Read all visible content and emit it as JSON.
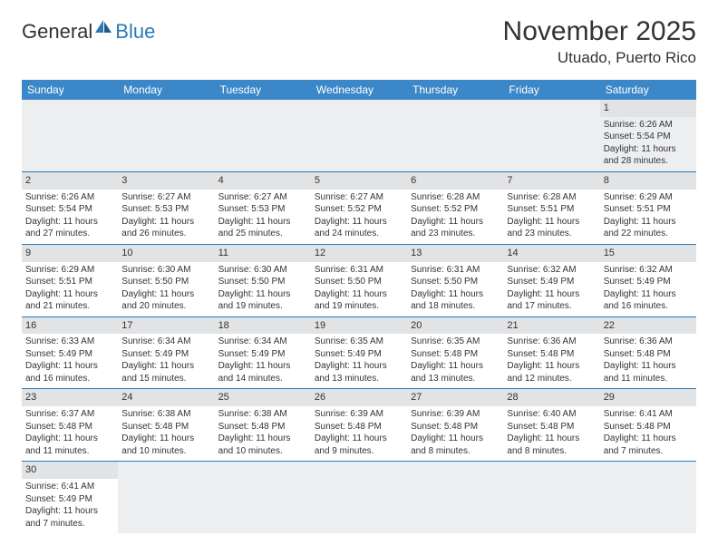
{
  "logo": {
    "text1": "General",
    "text2": "Blue"
  },
  "header": {
    "month_title": "November 2025",
    "location": "Utuado, Puerto Rico"
  },
  "colors": {
    "header_bg": "#3b87c8",
    "header_text": "#ffffff",
    "daynum_bg": "#e2e3e5",
    "divider": "#2a7ab9",
    "empty_bg": "#edeef0",
    "page_bg": "#ffffff",
    "text": "#333333"
  },
  "typography": {
    "title_fontsize": 30,
    "location_fontsize": 17,
    "dayheader_fontsize": 12,
    "cell_fontsize": 10
  },
  "calendar": {
    "type": "table",
    "columns": [
      "Sunday",
      "Monday",
      "Tuesday",
      "Wednesday",
      "Thursday",
      "Friday",
      "Saturday"
    ],
    "weeks": [
      [
        null,
        null,
        null,
        null,
        null,
        null,
        {
          "n": "1",
          "sr": "Sunrise: 6:26 AM",
          "ss": "Sunset: 5:54 PM",
          "d1": "Daylight: 11 hours",
          "d2": "and 28 minutes."
        }
      ],
      [
        {
          "n": "2",
          "sr": "Sunrise: 6:26 AM",
          "ss": "Sunset: 5:54 PM",
          "d1": "Daylight: 11 hours",
          "d2": "and 27 minutes."
        },
        {
          "n": "3",
          "sr": "Sunrise: 6:27 AM",
          "ss": "Sunset: 5:53 PM",
          "d1": "Daylight: 11 hours",
          "d2": "and 26 minutes."
        },
        {
          "n": "4",
          "sr": "Sunrise: 6:27 AM",
          "ss": "Sunset: 5:53 PM",
          "d1": "Daylight: 11 hours",
          "d2": "and 25 minutes."
        },
        {
          "n": "5",
          "sr": "Sunrise: 6:27 AM",
          "ss": "Sunset: 5:52 PM",
          "d1": "Daylight: 11 hours",
          "d2": "and 24 minutes."
        },
        {
          "n": "6",
          "sr": "Sunrise: 6:28 AM",
          "ss": "Sunset: 5:52 PM",
          "d1": "Daylight: 11 hours",
          "d2": "and 23 minutes."
        },
        {
          "n": "7",
          "sr": "Sunrise: 6:28 AM",
          "ss": "Sunset: 5:51 PM",
          "d1": "Daylight: 11 hours",
          "d2": "and 23 minutes."
        },
        {
          "n": "8",
          "sr": "Sunrise: 6:29 AM",
          "ss": "Sunset: 5:51 PM",
          "d1": "Daylight: 11 hours",
          "d2": "and 22 minutes."
        }
      ],
      [
        {
          "n": "9",
          "sr": "Sunrise: 6:29 AM",
          "ss": "Sunset: 5:51 PM",
          "d1": "Daylight: 11 hours",
          "d2": "and 21 minutes."
        },
        {
          "n": "10",
          "sr": "Sunrise: 6:30 AM",
          "ss": "Sunset: 5:50 PM",
          "d1": "Daylight: 11 hours",
          "d2": "and 20 minutes."
        },
        {
          "n": "11",
          "sr": "Sunrise: 6:30 AM",
          "ss": "Sunset: 5:50 PM",
          "d1": "Daylight: 11 hours",
          "d2": "and 19 minutes."
        },
        {
          "n": "12",
          "sr": "Sunrise: 6:31 AM",
          "ss": "Sunset: 5:50 PM",
          "d1": "Daylight: 11 hours",
          "d2": "and 19 minutes."
        },
        {
          "n": "13",
          "sr": "Sunrise: 6:31 AM",
          "ss": "Sunset: 5:50 PM",
          "d1": "Daylight: 11 hours",
          "d2": "and 18 minutes."
        },
        {
          "n": "14",
          "sr": "Sunrise: 6:32 AM",
          "ss": "Sunset: 5:49 PM",
          "d1": "Daylight: 11 hours",
          "d2": "and 17 minutes."
        },
        {
          "n": "15",
          "sr": "Sunrise: 6:32 AM",
          "ss": "Sunset: 5:49 PM",
          "d1": "Daylight: 11 hours",
          "d2": "and 16 minutes."
        }
      ],
      [
        {
          "n": "16",
          "sr": "Sunrise: 6:33 AM",
          "ss": "Sunset: 5:49 PM",
          "d1": "Daylight: 11 hours",
          "d2": "and 16 minutes."
        },
        {
          "n": "17",
          "sr": "Sunrise: 6:34 AM",
          "ss": "Sunset: 5:49 PM",
          "d1": "Daylight: 11 hours",
          "d2": "and 15 minutes."
        },
        {
          "n": "18",
          "sr": "Sunrise: 6:34 AM",
          "ss": "Sunset: 5:49 PM",
          "d1": "Daylight: 11 hours",
          "d2": "and 14 minutes."
        },
        {
          "n": "19",
          "sr": "Sunrise: 6:35 AM",
          "ss": "Sunset: 5:49 PM",
          "d1": "Daylight: 11 hours",
          "d2": "and 13 minutes."
        },
        {
          "n": "20",
          "sr": "Sunrise: 6:35 AM",
          "ss": "Sunset: 5:48 PM",
          "d1": "Daylight: 11 hours",
          "d2": "and 13 minutes."
        },
        {
          "n": "21",
          "sr": "Sunrise: 6:36 AM",
          "ss": "Sunset: 5:48 PM",
          "d1": "Daylight: 11 hours",
          "d2": "and 12 minutes."
        },
        {
          "n": "22",
          "sr": "Sunrise: 6:36 AM",
          "ss": "Sunset: 5:48 PM",
          "d1": "Daylight: 11 hours",
          "d2": "and 11 minutes."
        }
      ],
      [
        {
          "n": "23",
          "sr": "Sunrise: 6:37 AM",
          "ss": "Sunset: 5:48 PM",
          "d1": "Daylight: 11 hours",
          "d2": "and 11 minutes."
        },
        {
          "n": "24",
          "sr": "Sunrise: 6:38 AM",
          "ss": "Sunset: 5:48 PM",
          "d1": "Daylight: 11 hours",
          "d2": "and 10 minutes."
        },
        {
          "n": "25",
          "sr": "Sunrise: 6:38 AM",
          "ss": "Sunset: 5:48 PM",
          "d1": "Daylight: 11 hours",
          "d2": "and 10 minutes."
        },
        {
          "n": "26",
          "sr": "Sunrise: 6:39 AM",
          "ss": "Sunset: 5:48 PM",
          "d1": "Daylight: 11 hours",
          "d2": "and 9 minutes."
        },
        {
          "n": "27",
          "sr": "Sunrise: 6:39 AM",
          "ss": "Sunset: 5:48 PM",
          "d1": "Daylight: 11 hours",
          "d2": "and 8 minutes."
        },
        {
          "n": "28",
          "sr": "Sunrise: 6:40 AM",
          "ss": "Sunset: 5:48 PM",
          "d1": "Daylight: 11 hours",
          "d2": "and 8 minutes."
        },
        {
          "n": "29",
          "sr": "Sunrise: 6:41 AM",
          "ss": "Sunset: 5:48 PM",
          "d1": "Daylight: 11 hours",
          "d2": "and 7 minutes."
        }
      ],
      [
        {
          "n": "30",
          "sr": "Sunrise: 6:41 AM",
          "ss": "Sunset: 5:49 PM",
          "d1": "Daylight: 11 hours",
          "d2": "and 7 minutes."
        },
        null,
        null,
        null,
        null,
        null,
        null
      ]
    ]
  }
}
